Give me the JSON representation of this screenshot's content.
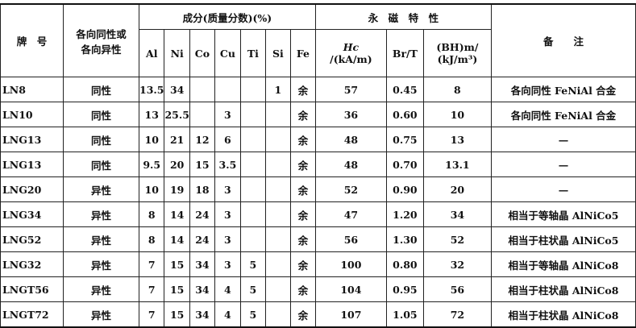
{
  "header": {
    "brand": "牌　号",
    "isotropy": [
      "各向同性或",
      "各向异性"
    ],
    "composition": "成分(质量分数)(%)",
    "elements": [
      "Al",
      "Ni",
      "Co",
      "Cu",
      "Ti",
      "Si",
      "Fe"
    ],
    "magnetic": "永　磁　特　性",
    "hc_symbol": "Hc",
    "hc_unit": "/(kA/m)",
    "br": "Br/T",
    "bh_symbol": "(BH)m/",
    "bh_unit": "(kJ/m³)",
    "note": "备　　注"
  },
  "rows": [
    {
      "brand": "LN8",
      "iso": "同性",
      "Al": "13.5",
      "Ni": "34",
      "Co": "",
      "Cu": "",
      "Ti": "",
      "Si": "1",
      "Fe": "余",
      "Hc": "57",
      "Br": "0.45",
      "BH": "8",
      "note": "各向同性 FeNiAl 合金"
    },
    {
      "brand": "LN10",
      "iso": "同性",
      "Al": "13",
      "Ni": "25.5",
      "Co": "",
      "Cu": "3",
      "Ti": "",
      "Si": "",
      "Fe": "余",
      "Hc": "36",
      "Br": "0.60",
      "BH": "10",
      "note": "各向同性 FeNiAl 合金"
    },
    {
      "brand": "LNG13",
      "iso": "同性",
      "Al": "10",
      "Ni": "21",
      "Co": "12",
      "Cu": "6",
      "Ti": "",
      "Si": "",
      "Fe": "余",
      "Hc": "48",
      "Br": "0.75",
      "BH": "13",
      "note": "—"
    },
    {
      "brand": "LNG13",
      "iso": "同性",
      "Al": "9.5",
      "Ni": "20",
      "Co": "15",
      "Cu": "3.5",
      "Ti": "",
      "Si": "",
      "Fe": "余",
      "Hc": "48",
      "Br": "0.70",
      "BH": "13.1",
      "note": "—"
    },
    {
      "brand": "LNG20",
      "iso": "异性",
      "Al": "10",
      "Ni": "19",
      "Co": "18",
      "Cu": "3",
      "Ti": "",
      "Si": "",
      "Fe": "余",
      "Hc": "52",
      "Br": "0.90",
      "BH": "20",
      "note": "—"
    },
    {
      "brand": "LNG34",
      "iso": "异性",
      "Al": "8",
      "Ni": "14",
      "Co": "24",
      "Cu": "3",
      "Ti": "",
      "Si": "",
      "Fe": "余",
      "Hc": "47",
      "Br": "1.20",
      "BH": "34",
      "note": "相当于等轴晶 AlNiCo5"
    },
    {
      "brand": "LNG52",
      "iso": "异性",
      "Al": "8",
      "Ni": "14",
      "Co": "24",
      "Cu": "3",
      "Ti": "",
      "Si": "",
      "Fe": "余",
      "Hc": "56",
      "Br": "1.30",
      "BH": "52",
      "note": "相当于柱状晶 AlNiCo5"
    },
    {
      "brand": "LNG32",
      "iso": "异性",
      "Al": "7",
      "Ni": "15",
      "Co": "34",
      "Cu": "3",
      "Ti": "5",
      "Si": "",
      "Fe": "余",
      "Hc": "100",
      "Br": "0.80",
      "BH": "32",
      "note": "相当于等轴晶 AlNiCo8"
    },
    {
      "brand": "LNGT56",
      "iso": "异性",
      "Al": "7",
      "Ni": "15",
      "Co": "34",
      "Cu": "4",
      "Ti": "5",
      "Si": "",
      "Fe": "余",
      "Hc": "104",
      "Br": "0.95",
      "BH": "56",
      "note": "相当于柱状晶 AlNiCo8"
    },
    {
      "brand": "LNGT72",
      "iso": "异性",
      "Al": "7",
      "Ni": "15",
      "Co": "34",
      "Cu": "4",
      "Ti": "5",
      "Si": "",
      "Fe": "余",
      "Hc": "107",
      "Br": "1.05",
      "BH": "72",
      "note": "相当于柱状晶 AlNiCo8"
    }
  ]
}
